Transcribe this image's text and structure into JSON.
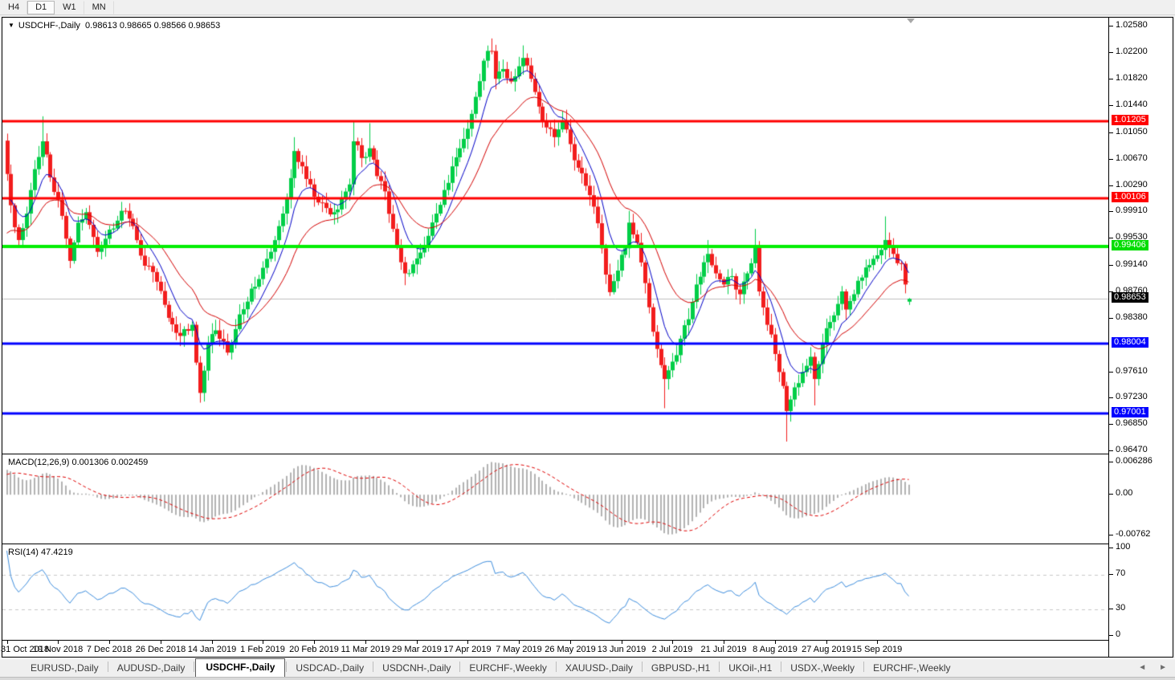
{
  "toolbar": {
    "timeframes": [
      {
        "label": "H4",
        "active": false
      },
      {
        "label": "D1",
        "active": true
      },
      {
        "label": "W1",
        "active": false
      },
      {
        "label": "MN",
        "active": false
      }
    ]
  },
  "chart": {
    "title_symbol": "USDCHF-,Daily",
    "title_ohlc": "0.98613 0.98665 0.98566 0.98653",
    "caret": "▼"
  },
  "price_scale": {
    "ticks": [
      "1.02580",
      "1.02200",
      "1.01820",
      "1.01440",
      "1.01050",
      "1.00670",
      "1.00290",
      "0.99910",
      "0.99530",
      "0.99140",
      "0.98760",
      "0.98380",
      "0.97610",
      "0.97230",
      "0.96850",
      "0.96470"
    ],
    "levels": [
      {
        "text": "1.01205",
        "price": 1.01205,
        "bg": "#ff0000",
        "fg": "#ffffff",
        "name": "resistance-label-1"
      },
      {
        "text": "1.00106",
        "price": 1.00106,
        "bg": "#ff0000",
        "fg": "#ffffff",
        "name": "resistance-label-2"
      },
      {
        "text": "0.99406",
        "price": 0.99406,
        "bg": "#00dd00",
        "fg": "#ffffff",
        "name": "pivot-label"
      },
      {
        "text": "0.98004",
        "price": 0.98004,
        "bg": "#0000ff",
        "fg": "#ffffff",
        "name": "support-label-1"
      },
      {
        "text": "0.97001",
        "price": 0.97001,
        "bg": "#0000ff",
        "fg": "#ffffff",
        "name": "support-label-2"
      },
      {
        "text": "0.98653",
        "price": 0.98653,
        "bg": "#000000",
        "fg": "#ffffff",
        "name": "current-price-label"
      }
    ]
  },
  "indicators": {
    "macd": {
      "label": "MACD(12,26,9)",
      "values": "0.001306 0.002459",
      "ticks": {
        "top": "0.006286",
        "zero": "0.00",
        "bottom": "-0.00762"
      }
    },
    "rsi": {
      "label": "RSI(14)",
      "value": "47.4219",
      "ticks": [
        "100",
        "70",
        "30",
        "0"
      ]
    }
  },
  "x_axis": {
    "labels": [
      {
        "index": 0,
        "text": "31 Oct 2018"
      },
      {
        "index": 13,
        "text": "19 Nov 2018"
      },
      {
        "index": 26,
        "text": "7 Dec 2018"
      },
      {
        "index": 39,
        "text": "26 Dec 2018"
      },
      {
        "index": 52,
        "text": "14 Jan 2019"
      },
      {
        "index": 65,
        "text": "1 Feb 2019"
      },
      {
        "index": 78,
        "text": "20 Feb 2019"
      },
      {
        "index": 91,
        "text": "11 Mar 2019"
      },
      {
        "index": 104,
        "text": "29 Mar 2019"
      },
      {
        "index": 117,
        "text": "17 Apr 2019"
      },
      {
        "index": 130,
        "text": "7 May 2019"
      },
      {
        "index": 143,
        "text": "26 May 2019"
      },
      {
        "index": 156,
        "text": "13 Jun 2019"
      },
      {
        "index": 169,
        "text": "2 Jul 2019"
      },
      {
        "index": 182,
        "text": "21 Jul 2019"
      },
      {
        "index": 195,
        "text": "8 Aug 2019"
      },
      {
        "index": 208,
        "text": "27 Aug 2019"
      },
      {
        "index": 221,
        "text": "15 Sep 2019"
      }
    ]
  },
  "tabs": {
    "active_index": 2,
    "items": [
      "EURUSD-,Daily",
      "AUDUSD-,Daily",
      "USDCHF-,Daily",
      "USDCAD-,Daily",
      "USDCNH-,Daily",
      "EURCHF-,Weekly",
      "XAUUSD-,Daily",
      "GBPUSD-,H1",
      "UKOil-,H1",
      "USDX-,Weekly",
      "EURCHF-,Weekly"
    ],
    "scroll_left": "◄",
    "scroll_right": "►"
  },
  "colors": {
    "bull": "#00ce47",
    "bear": "#f21d1d",
    "ma_fast": "#0000c8",
    "ma_slow": "#d40000",
    "hline_red": "#ff0000",
    "hline_green": "#00ee00",
    "hline_blue": "#0000ff",
    "current_line": "#c0c0c0",
    "macd_hist": "#b2b2b2",
    "macd_signal": "#e00000",
    "rsi_line": "#3e8ede",
    "rsi_levels": "#c8c8c8"
  },
  "chart_data": {
    "type": "candlestick",
    "symbol": "USDCHF",
    "timeframe": "Daily",
    "candle_count": 230,
    "y_range": [
      0.9645,
      1.0263
    ],
    "last_ohlc": {
      "open": 0.98613,
      "high": 0.98665,
      "low": 0.98566,
      "close": 0.98653
    },
    "hlines": [
      {
        "price": 1.01205,
        "color": "#ff0000",
        "width": 3
      },
      {
        "price": 1.00106,
        "color": "#ff0000",
        "width": 3
      },
      {
        "price": 0.99406,
        "color": "#00ee00",
        "width": 4
      },
      {
        "price": 0.98004,
        "color": "#0000ff",
        "width": 3
      },
      {
        "price": 0.97001,
        "color": "#0000ff",
        "width": 3
      }
    ],
    "current_price": 0.98653,
    "close_anchors": [
      [
        0,
        1.0045
      ],
      [
        1,
        1.0
      ],
      [
        3,
        0.995
      ],
      [
        5,
        0.9988
      ],
      [
        7,
        1.0052
      ],
      [
        9,
        1.0092
      ],
      [
        11,
        1.004
      ],
      [
        13,
        1.0008
      ],
      [
        15,
        0.9952
      ],
      [
        16,
        0.992
      ],
      [
        18,
        0.9975
      ],
      [
        20,
        0.999
      ],
      [
        23,
        0.9933
      ],
      [
        26,
        0.9965
      ],
      [
        29,
        0.9992
      ],
      [
        32,
        0.997
      ],
      [
        35,
        0.9913
      ],
      [
        38,
        0.989
      ],
      [
        41,
        0.9838
      ],
      [
        44,
        0.9812
      ],
      [
        47,
        0.9828
      ],
      [
        49,
        0.973
      ],
      [
        51,
        0.98
      ],
      [
        53,
        0.982
      ],
      [
        56,
        0.9788
      ],
      [
        59,
        0.9843
      ],
      [
        62,
        0.988
      ],
      [
        65,
        0.991
      ],
      [
        67,
        0.9933
      ],
      [
        69,
        0.997
      ],
      [
        71,
        1.001
      ],
      [
        73,
        1.0078
      ],
      [
        75,
        1.0056
      ],
      [
        77,
        1.003
      ],
      [
        79,
        1.0004
      ],
      [
        81,
        0.9996
      ],
      [
        83,
        0.999
      ],
      [
        85,
        1.001
      ],
      [
        87,
        1.003
      ],
      [
        88,
        1.0092
      ],
      [
        90,
        1.0068
      ],
      [
        92,
        1.0082
      ],
      [
        94,
        1.0042
      ],
      [
        96,
        1.002
      ],
      [
        98,
        0.9966
      ],
      [
        100,
        0.9918
      ],
      [
        101,
        0.9902
      ],
      [
        103,
        0.9915
      ],
      [
        105,
        0.9932
      ],
      [
        107,
        0.9956
      ],
      [
        109,
        0.9988
      ],
      [
        111,
        1.0022
      ],
      [
        113,
        1.0056
      ],
      [
        115,
        1.0082
      ],
      [
        117,
        1.011
      ],
      [
        119,
        1.0156
      ],
      [
        121,
        1.0208
      ],
      [
        123,
        1.0222
      ],
      [
        124,
        1.0182
      ],
      [
        126,
        1.0196
      ],
      [
        128,
        1.0178
      ],
      [
        130,
        1.02
      ],
      [
        131,
        1.0212
      ],
      [
        133,
        1.0182
      ],
      [
        135,
        1.0142
      ],
      [
        137,
        1.0112
      ],
      [
        139,
        1.0098
      ],
      [
        141,
        1.0122
      ],
      [
        143,
        1.0088
      ],
      [
        145,
        1.0054
      ],
      [
        147,
        1.0028
      ],
      [
        149,
        0.9998
      ],
      [
        151,
        0.9938
      ],
      [
        153,
        0.9875
      ],
      [
        155,
        0.9906
      ],
      [
        157,
        0.9938
      ],
      [
        158,
        0.9975
      ],
      [
        160,
        0.9946
      ],
      [
        162,
        0.9888
      ],
      [
        164,
        0.9818
      ],
      [
        166,
        0.977
      ],
      [
        167,
        0.975
      ],
      [
        169,
        0.9775
      ],
      [
        171,
        0.9808
      ],
      [
        173,
        0.9836
      ],
      [
        175,
        0.9886
      ],
      [
        177,
        0.9918
      ],
      [
        178,
        0.993
      ],
      [
        180,
        0.9902
      ],
      [
        182,
        0.9886
      ],
      [
        184,
        0.9898
      ],
      [
        186,
        0.9872
      ],
      [
        188,
        0.9902
      ],
      [
        190,
        0.9942
      ],
      [
        191,
        0.9876
      ],
      [
        193,
        0.9828
      ],
      [
        195,
        0.9786
      ],
      [
        197,
        0.974
      ],
      [
        198,
        0.9704
      ],
      [
        200,
        0.9738
      ],
      [
        202,
        0.976
      ],
      [
        204,
        0.9782
      ],
      [
        205,
        0.975
      ],
      [
        207,
        0.98
      ],
      [
        209,
        0.9832
      ],
      [
        211,
        0.9858
      ],
      [
        212,
        0.9876
      ],
      [
        213,
        0.985
      ],
      [
        215,
        0.9872
      ],
      [
        217,
        0.9896
      ],
      [
        219,
        0.9914
      ],
      [
        221,
        0.9928
      ],
      [
        223,
        0.995
      ],
      [
        225,
        0.993
      ],
      [
        227,
        0.9916
      ],
      [
        228,
        0.9886
      ],
      [
        229,
        0.98653
      ]
    ],
    "spikes": [
      {
        "i": 9,
        "high": 1.0128
      },
      {
        "i": 49,
        "low": 0.9716
      },
      {
        "i": 73,
        "high": 1.0098
      },
      {
        "i": 88,
        "high": 1.0122
      },
      {
        "i": 92,
        "high": 1.0118
      },
      {
        "i": 101,
        "low": 0.9885
      },
      {
        "i": 123,
        "high": 1.024
      },
      {
        "i": 131,
        "high": 1.023
      },
      {
        "i": 158,
        "high": 0.9992
      },
      {
        "i": 167,
        "low": 0.9708
      },
      {
        "i": 178,
        "high": 0.995
      },
      {
        "i": 190,
        "high": 0.9966
      },
      {
        "i": 198,
        "low": 0.966
      },
      {
        "i": 205,
        "low": 0.9712
      },
      {
        "i": 223,
        "high": 0.9984
      }
    ],
    "ma_fast_period": 8,
    "ma_slow_period": 21,
    "macd": {
      "fast": 12,
      "slow": 26,
      "signal": 9,
      "current_main": 0.001306,
      "current_signal": 0.002459,
      "axis_range": [
        -0.00762,
        0.006286
      ]
    },
    "rsi": {
      "period": 14,
      "current": 47.4219,
      "levels": [
        30,
        70
      ],
      "axis_range": [
        0,
        100
      ]
    }
  }
}
